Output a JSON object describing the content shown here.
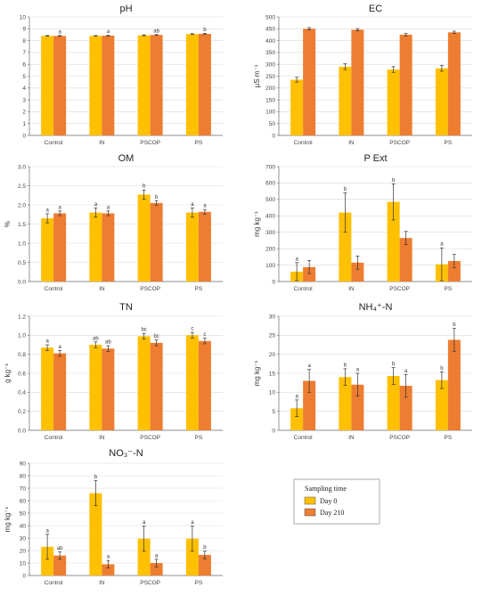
{
  "legend": {
    "title": "Sampling time",
    "items": [
      {
        "label": "Day 0",
        "color": "#FFC000"
      },
      {
        "label": "Day 210",
        "color": "#ED7D31"
      }
    ]
  },
  "chart_data": [
    {
      "type": "bar",
      "title": "pH",
      "ylabel": "",
      "ylim": [
        0,
        10
      ],
      "ystep": 1,
      "ydec": 0,
      "categories": [
        "Control",
        "IN",
        "PSCOP",
        "PS"
      ],
      "series": [
        {
          "name": "Day 0",
          "values": [
            8.4,
            8.4,
            8.45,
            8.55
          ],
          "errors": [
            0.03,
            0.03,
            0.03,
            0.03
          ],
          "letters": [
            "",
            "",
            "",
            ""
          ]
        },
        {
          "name": "Day 210",
          "values": [
            8.4,
            8.42,
            8.48,
            8.57
          ],
          "errors": [
            0.03,
            0.03,
            0.03,
            0.03
          ],
          "letters": [
            "a",
            "a",
            "ab",
            "b"
          ]
        }
      ]
    },
    {
      "type": "bar",
      "title": "EC",
      "ylabel": "µS m⁻¹",
      "ylim": [
        0,
        500
      ],
      "ystep": 50,
      "ydec": 0,
      "categories": [
        "Control",
        "IN",
        "PSCOP",
        "PS"
      ],
      "series": [
        {
          "name": "Day 0",
          "values": [
            235,
            290,
            278,
            283
          ],
          "errors": [
            10,
            12,
            12,
            12
          ],
          "letters": [
            "",
            "",
            "",
            ""
          ]
        },
        {
          "name": "Day 210",
          "values": [
            450,
            446,
            425,
            435
          ],
          "errors": [
            5,
            5,
            5,
            5
          ],
          "letters": [
            "",
            "",
            "",
            ""
          ]
        }
      ]
    },
    {
      "type": "bar",
      "title": "OM",
      "ylabel": "%",
      "ylim": [
        0,
        3
      ],
      "ystep": 0.5,
      "ydec": 1,
      "categories": [
        "Control",
        "IN",
        "PSCOP",
        "PS"
      ],
      "series": [
        {
          "name": "Day 0",
          "values": [
            1.65,
            1.8,
            2.27,
            1.8
          ],
          "errors": [
            0.12,
            0.12,
            0.12,
            0.12
          ],
          "letters": [
            "a",
            "a",
            "b",
            "a"
          ]
        },
        {
          "name": "Day 210",
          "values": [
            1.78,
            1.78,
            2.05,
            1.82
          ],
          "errors": [
            0.06,
            0.06,
            0.06,
            0.06
          ],
          "letters": [
            "a",
            "a",
            "b",
            "a"
          ]
        }
      ]
    },
    {
      "type": "bar",
      "title": "P Ext",
      "ylabel": "mg kg⁻¹",
      "ylim": [
        0,
        700
      ],
      "ystep": 100,
      "ydec": 0,
      "categories": [
        "Control",
        "IN",
        "PSCOP",
        "PS"
      ],
      "series": [
        {
          "name": "Day 0",
          "values": [
            60,
            420,
            485,
            105
          ],
          "errors": [
            55,
            120,
            110,
            100
          ],
          "letters": [
            "a",
            "b",
            "b",
            "a"
          ]
        },
        {
          "name": "Day 210",
          "values": [
            88,
            115,
            265,
            125
          ],
          "errors": [
            40,
            40,
            40,
            40
          ],
          "letters": [
            "",
            "",
            "",
            ""
          ]
        }
      ]
    },
    {
      "type": "bar",
      "title": "TN",
      "ylabel": "g kg⁻¹",
      "ylim": [
        0,
        1.2
      ],
      "ystep": 0.2,
      "ydec": 1,
      "categories": [
        "Control",
        "IN",
        "PSCOP",
        "PS"
      ],
      "series": [
        {
          "name": "Day 0",
          "values": [
            0.87,
            0.9,
            0.99,
            1.0
          ],
          "errors": [
            0.03,
            0.03,
            0.03,
            0.03
          ],
          "letters": [
            "a",
            "ab",
            "bc",
            "c"
          ]
        },
        {
          "name": "Day 210",
          "values": [
            0.81,
            0.86,
            0.92,
            0.94
          ],
          "errors": [
            0.03,
            0.03,
            0.03,
            0.03
          ],
          "letters": [
            "a",
            "ab",
            "bc",
            "c"
          ]
        }
      ]
    },
    {
      "type": "bar",
      "title": "NH₄⁺-N",
      "ylabel": "mg kg⁻¹",
      "ylim": [
        0,
        30
      ],
      "ystep": 5,
      "ydec": 0,
      "categories": [
        "Control",
        "IN",
        "PSCOP",
        "PS"
      ],
      "series": [
        {
          "name": "Day 0",
          "values": [
            5.8,
            14,
            14.3,
            13.2
          ],
          "errors": [
            2.2,
            2.2,
            2.2,
            2.2
          ],
          "letters": [
            "a",
            "b",
            "b",
            "b"
          ]
        },
        {
          "name": "Day 210",
          "values": [
            13,
            12,
            11.7,
            23.8
          ],
          "errors": [
            3,
            3,
            3,
            3
          ],
          "letters": [
            "a",
            "a",
            "a",
            "b"
          ]
        }
      ]
    },
    {
      "type": "bar",
      "title": "NO₃⁻-N",
      "ylabel": "mg kg⁻¹",
      "ylim": [
        0,
        90
      ],
      "ystep": 10,
      "ydec": 0,
      "categories": [
        "Control",
        "IN",
        "PSCOP",
        "PS"
      ],
      "series": [
        {
          "name": "Day 0",
          "values": [
            23,
            66,
            29.5,
            29.5
          ],
          "errors": [
            10,
            10,
            10,
            10
          ],
          "letters": [
            "a",
            "b",
            "a",
            "a"
          ]
        },
        {
          "name": "Day 210",
          "values": [
            16,
            9,
            10,
            16.5
          ],
          "errors": [
            3,
            3,
            3,
            3
          ],
          "letters": [
            "ab",
            "a",
            "a",
            "b"
          ]
        }
      ]
    }
  ]
}
